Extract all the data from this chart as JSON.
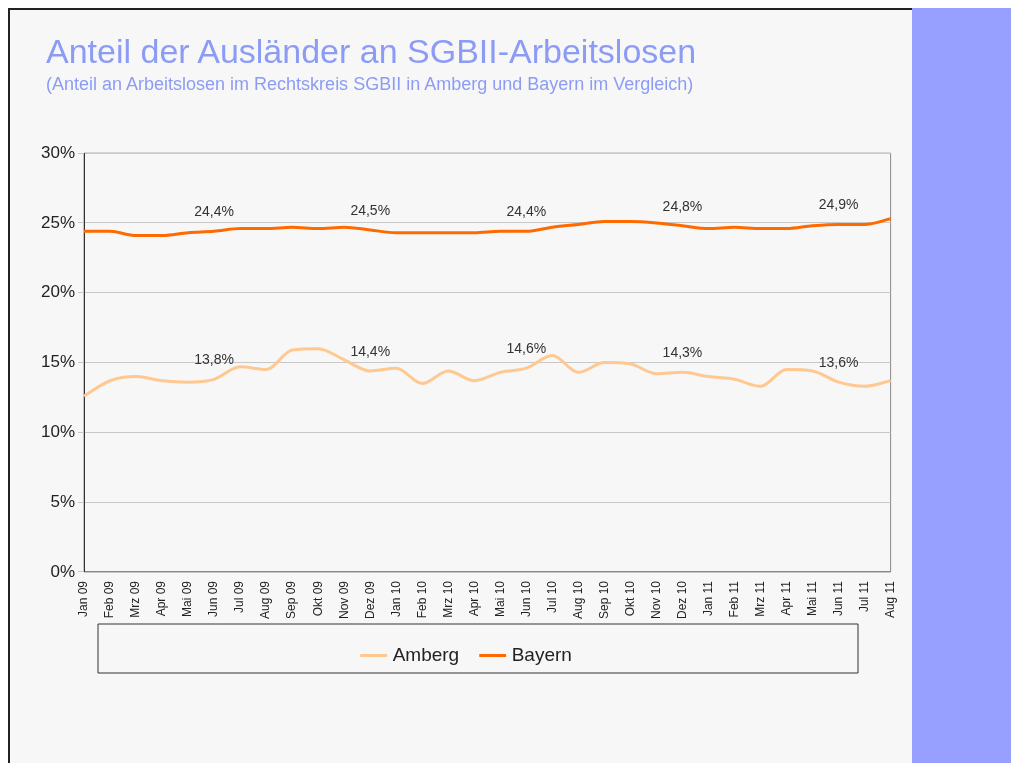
{
  "chart_data": {
    "type": "line",
    "title": "Anteil der Ausländer an SGBII-Arbeitslosen",
    "subtitle": "(Anteil an Arbeitslosen im Rechtskreis SGBII in Amberg und Bayern im Vergleich)",
    "categories": [
      "Jan 09",
      "Feb 09",
      "Mrz 09",
      "Apr 09",
      "Mai 09",
      "Jun 09",
      "Jul 09",
      "Aug 09",
      "Sep 09",
      "Okt 09",
      "Nov 09",
      "Dez 09",
      "Jan 10",
      "Feb 10",
      "Mrz 10",
      "Apr 10",
      "Mai 10",
      "Jun 10",
      "Jul 10",
      "Aug 10",
      "Sep 10",
      "Okt 10",
      "Nov 10",
      "Dez 10",
      "Jan 11",
      "Feb 11",
      "Mrz 11",
      "Apr 11",
      "Mai 11",
      "Jun 11",
      "Jul 11",
      "Aug 11"
    ],
    "series": [
      {
        "name": "Amberg",
        "color": "#ffc890",
        "values": [
          12.6,
          13.7,
          14.0,
          13.7,
          13.6,
          13.8,
          14.7,
          14.5,
          15.9,
          16.0,
          15.2,
          14.4,
          14.6,
          13.5,
          14.4,
          13.7,
          14.3,
          14.6,
          15.5,
          14.3,
          15.0,
          14.9,
          14.2,
          14.3,
          14.0,
          13.8,
          13.3,
          14.5,
          14.4,
          13.6,
          13.3,
          13.7
        ],
        "value_labels": [
          null,
          null,
          null,
          null,
          null,
          "13,8%",
          null,
          null,
          null,
          null,
          null,
          "14,4%",
          null,
          null,
          null,
          null,
          null,
          "14,6%",
          null,
          null,
          null,
          null,
          null,
          "14,3%",
          null,
          null,
          null,
          null,
          null,
          "13,6%",
          null,
          null
        ]
      },
      {
        "name": "Bayern",
        "color": "#ff6a00",
        "values": [
          24.4,
          24.4,
          24.1,
          24.1,
          24.3,
          24.4,
          24.6,
          24.6,
          24.7,
          24.6,
          24.7,
          24.5,
          24.3,
          24.3,
          24.3,
          24.3,
          24.4,
          24.4,
          24.7,
          24.9,
          25.1,
          25.1,
          25.0,
          24.8,
          24.6,
          24.7,
          24.6,
          24.6,
          24.8,
          24.9,
          24.9,
          25.3
        ],
        "value_labels": [
          null,
          null,
          null,
          null,
          null,
          "24,4%",
          null,
          null,
          null,
          null,
          null,
          "24,5%",
          null,
          null,
          null,
          null,
          null,
          "24,4%",
          null,
          null,
          null,
          null,
          null,
          "24,8%",
          null,
          null,
          null,
          null,
          null,
          "24,9%",
          null,
          null
        ]
      }
    ],
    "ylim": [
      0,
      30
    ],
    "yticks": [
      {
        "value": 0,
        "label": "0%"
      },
      {
        "value": 5,
        "label": "5%"
      },
      {
        "value": 10,
        "label": "10%"
      },
      {
        "value": 15,
        "label": "15%"
      },
      {
        "value": 20,
        "label": "20%"
      },
      {
        "value": 25,
        "label": "25%"
      },
      {
        "value": 30,
        "label": "30%"
      }
    ],
    "grid": "y",
    "legend": "bottom",
    "marker": "none",
    "line_style": "solid"
  }
}
